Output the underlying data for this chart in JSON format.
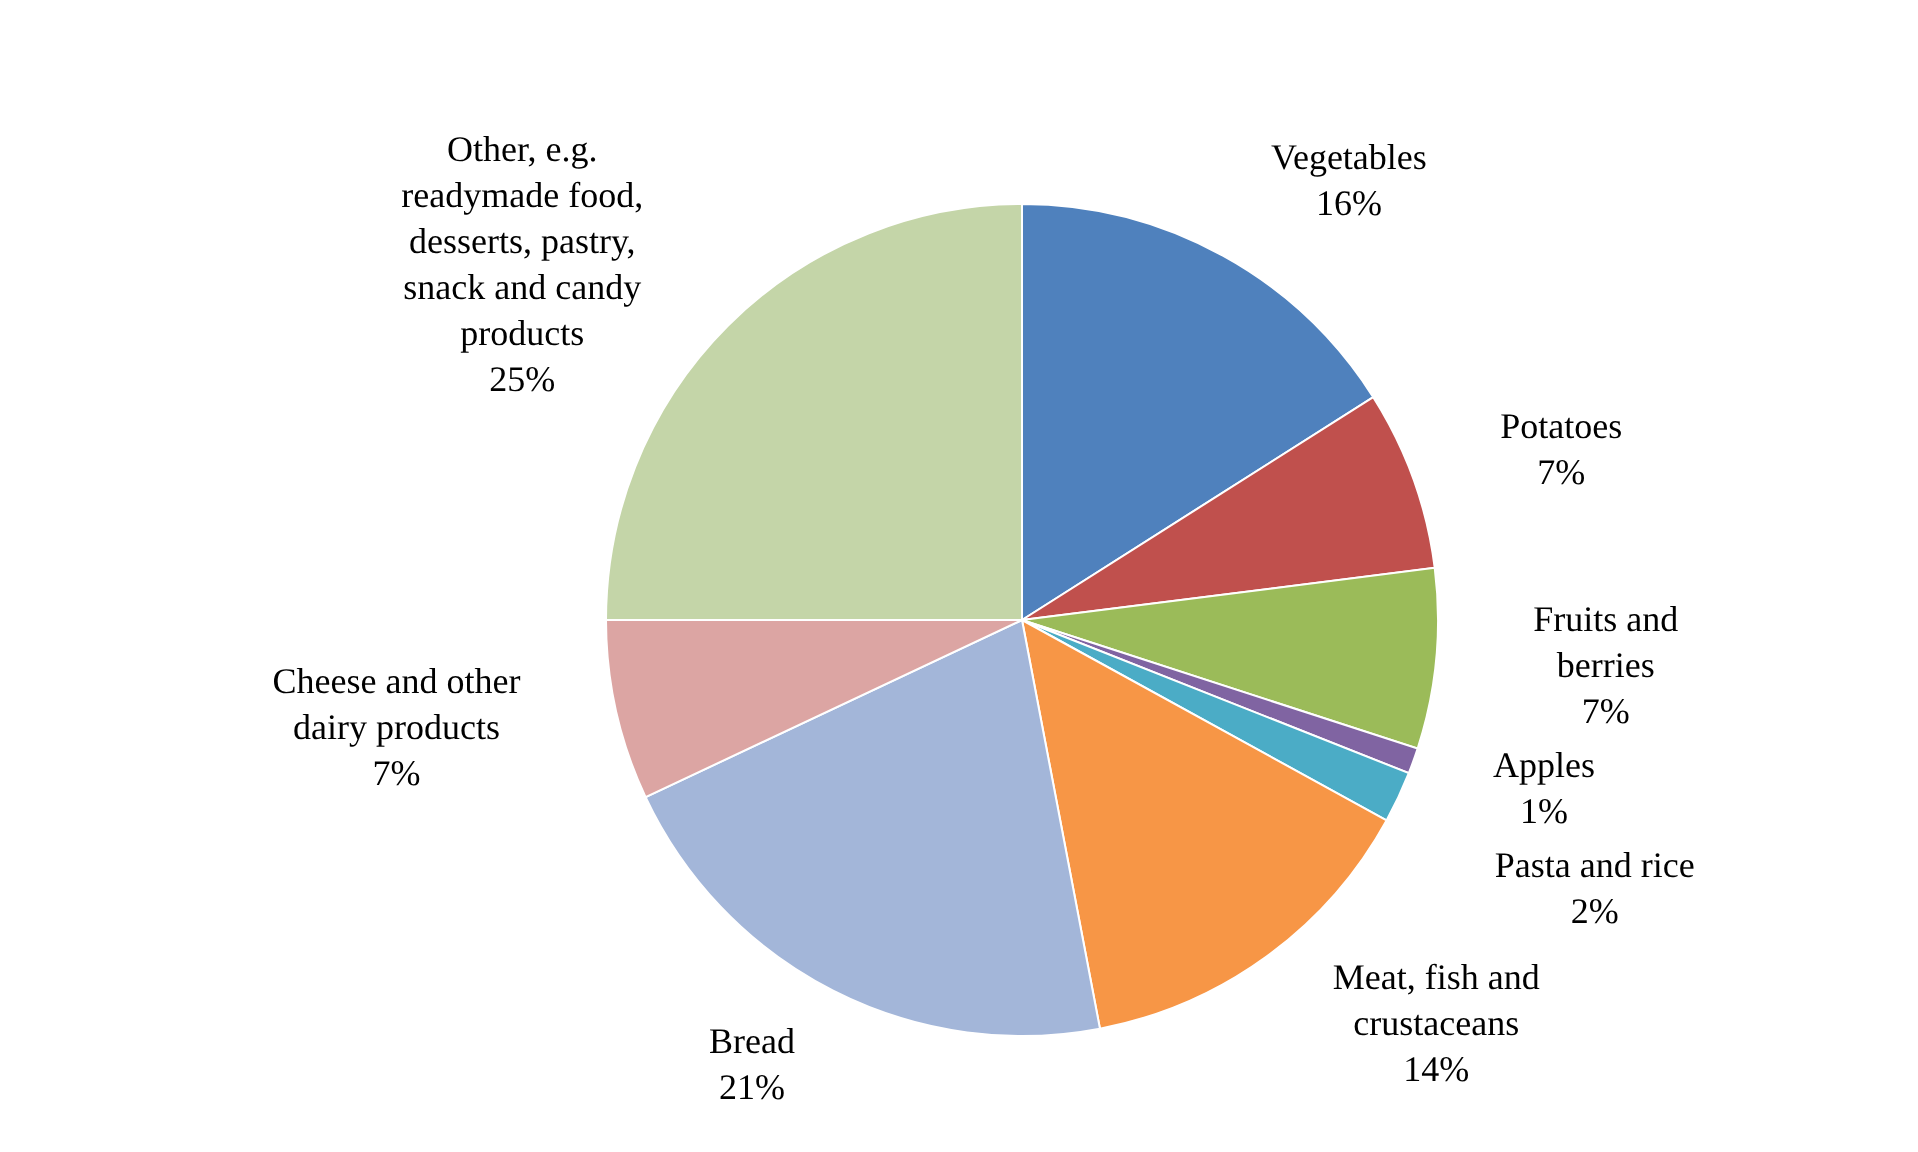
{
  "chart_data": {
    "type": "pie",
    "categories": [
      "Vegetables",
      "Potatoes",
      "Fruits and berries",
      "Apples",
      "Pasta and rice",
      "Meat, fish and crustaceans",
      "Bread",
      "Cheese and other dairy products",
      "Other, e.g. readymade food, desserts, pastry, snack and candy products"
    ],
    "values": [
      16,
      7,
      7,
      1,
      2,
      14,
      21,
      7,
      25
    ],
    "colors": [
      "#4f81bd",
      "#c0504d",
      "#9bbb59",
      "#8064a2",
      "#4bacc6",
      "#f79646",
      "#a3b6d9",
      "#dca5a3",
      "#c4d5a8"
    ],
    "value_labels": [
      "16%",
      "7%",
      "7%",
      "1%",
      "2%",
      "14%",
      "21%",
      "7%",
      "25%"
    ]
  }
}
